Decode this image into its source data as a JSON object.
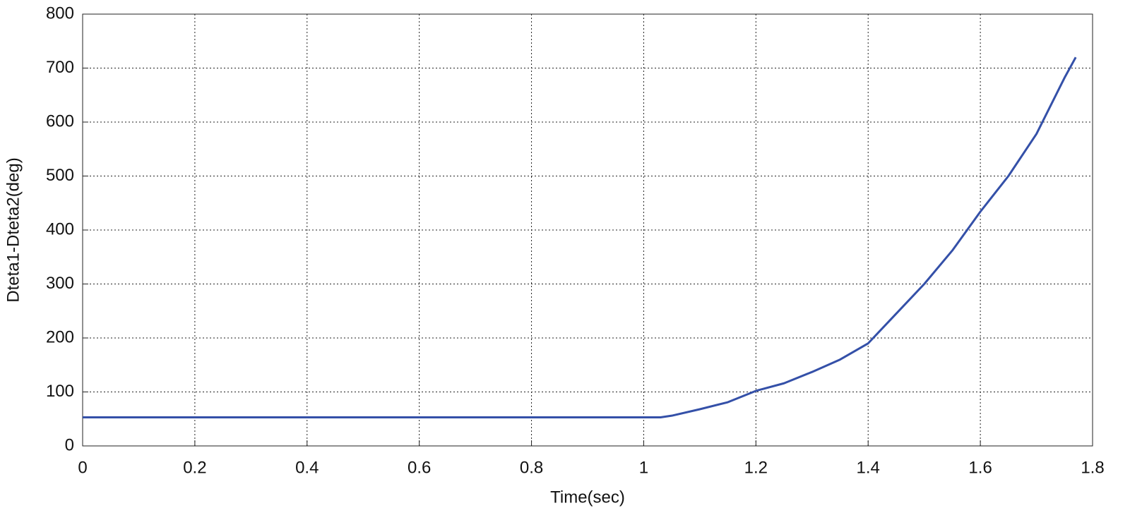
{
  "chart_data": {
    "type": "line",
    "x_label": "Time(sec)",
    "y_label": "Dteta1-Dteta2(deg)",
    "x": [
      0,
      1.03,
      1.05,
      1.1,
      1.15,
      1.2,
      1.25,
      1.3,
      1.35,
      1.4,
      1.45,
      1.5,
      1.55,
      1.6,
      1.65,
      1.7,
      1.75,
      1.77
    ],
    "series": [
      {
        "color": "#3450a8",
        "values": [
          53,
          53,
          56,
          68,
          81,
          102,
          116,
          137,
          160,
          190,
          245,
          300,
          362,
          434,
          500,
          578,
          682,
          720
        ]
      }
    ],
    "xlim": [
      0,
      1.8
    ],
    "ylim": [
      0,
      800
    ],
    "xticks": [
      0,
      0.2,
      0.4,
      0.6,
      0.8,
      1,
      1.2,
      1.4,
      1.6,
      1.8
    ],
    "yticks": [
      0,
      100,
      200,
      300,
      400,
      500,
      600,
      700,
      800
    ],
    "grid": true
  }
}
